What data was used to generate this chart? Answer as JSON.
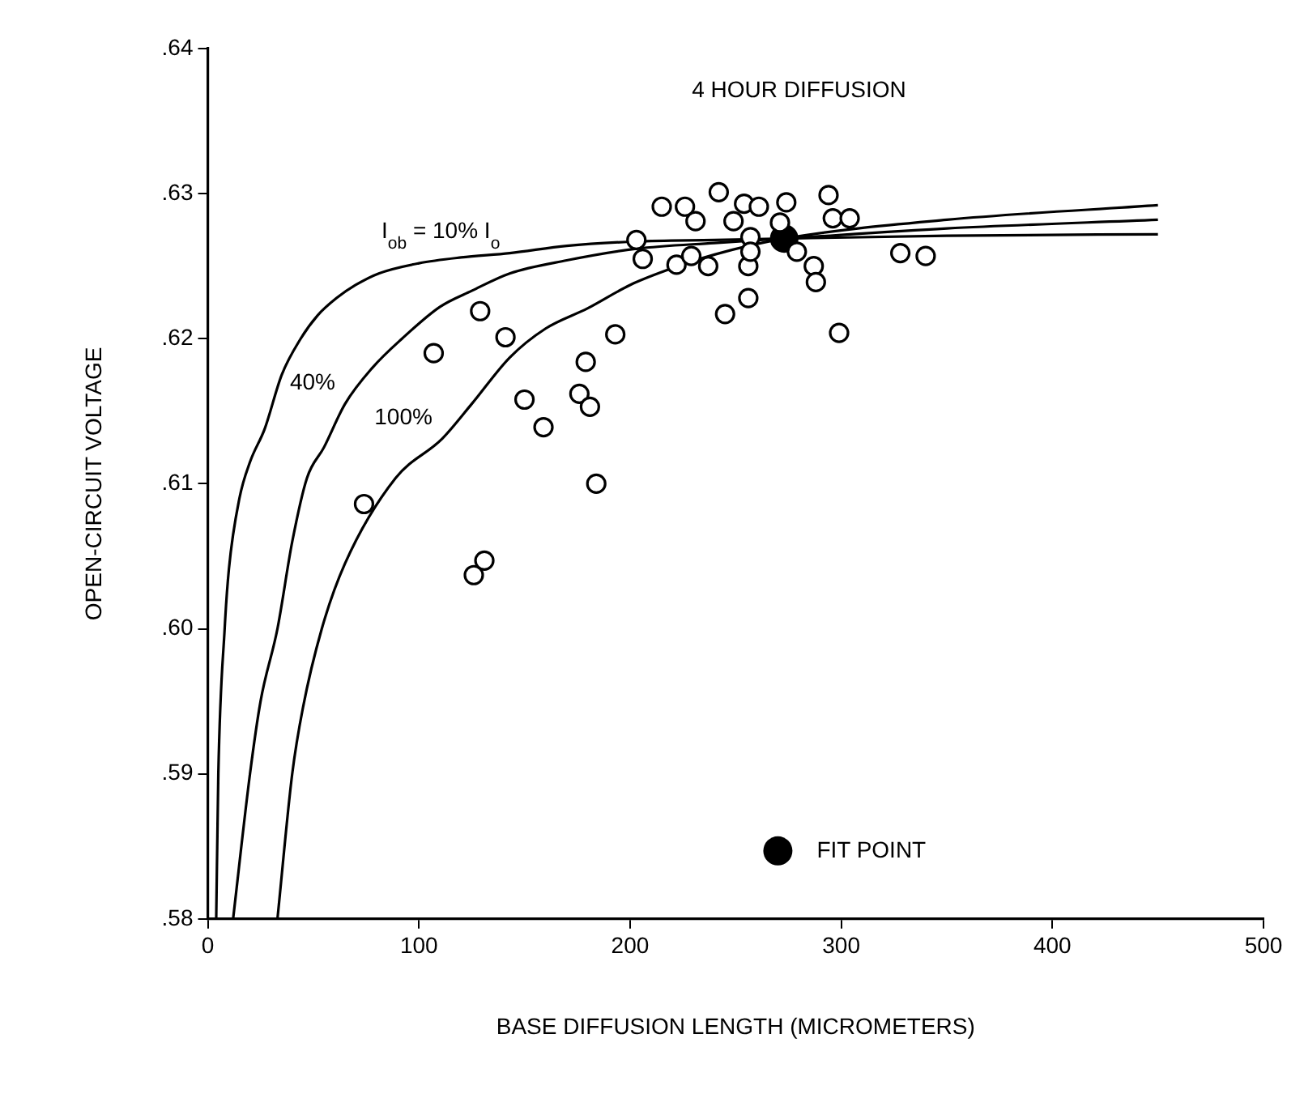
{
  "chart_data": {
    "type": "scatter",
    "xlabel": "BASE DIFFUSION LENGTH (MICROMETERS)",
    "ylabel": "OPEN-CIRCUIT VOLTAGE",
    "xlim": [
      0,
      500
    ],
    "xticks": [
      0,
      100,
      200,
      300,
      400,
      500
    ],
    "ylim": [
      0.58,
      0.64
    ],
    "yticks": [
      {
        "value": 0.58,
        "label": ".58"
      },
      {
        "value": 0.59,
        "label": ".59"
      },
      {
        "value": 0.6,
        "label": ".60"
      },
      {
        "value": 0.61,
        "label": ".61"
      },
      {
        "value": 0.62,
        "label": ".62"
      },
      {
        "value": 0.63,
        "label": ".63"
      },
      {
        "value": 0.64,
        "label": ".64"
      }
    ],
    "grid": false,
    "legend": "bottom",
    "marker": "circle",
    "series": [
      {
        "color": "#000000",
        "x": [
          215,
          226,
          231,
          242,
          249,
          254,
          203,
          206,
          222,
          229,
          237,
          256,
          256,
          245,
          129,
          141,
          107,
          193,
          179,
          176,
          181,
          150,
          159,
          184,
          74,
          126,
          131,
          261,
          274,
          294,
          296,
          304,
          271,
          257,
          257,
          299,
          279,
          287,
          288,
          328,
          340
        ],
        "values": [
          0.6291,
          0.6291,
          0.6281,
          0.6301,
          0.6281,
          0.6293,
          0.6268,
          0.6255,
          0.6251,
          0.6257,
          0.625,
          0.625,
          0.6228,
          0.6217,
          0.6219,
          0.6201,
          0.619,
          0.6203,
          0.6184,
          0.6162,
          0.6153,
          0.6158,
          0.6139,
          0.61,
          0.6086,
          0.6037,
          0.6047,
          0.6291,
          0.6294,
          0.6299,
          0.6283,
          0.6283,
          0.628,
          0.627,
          0.626,
          0.6204,
          0.626,
          0.625,
          0.6239,
          0.6259,
          0.6257
        ]
      },
      {
        "type": "line",
        "marker": "none",
        "color": "#000000",
        "x": [
          4,
          5,
          8,
          10,
          15,
          20,
          27,
          35,
          44,
          52,
          61,
          70,
          81,
          100,
          120,
          143,
          170,
          203,
          240,
          273,
          350,
          450
        ],
        "values": [
          0.58,
          0.59,
          0.6,
          0.6041,
          0.609,
          0.6115,
          0.6138,
          0.6175,
          0.62,
          0.6216,
          0.6228,
          0.6237,
          0.6245,
          0.6252,
          0.6256,
          0.6259,
          0.6264,
          0.6267,
          0.6268,
          0.6269,
          0.6271,
          0.6272
        ]
      },
      {
        "type": "line",
        "marker": "none",
        "color": "#000000",
        "x": [
          12,
          20,
          25,
          33,
          40,
          47,
          55,
          65,
          78,
          92,
          110,
          125,
          143,
          170,
          203,
          240,
          273,
          350,
          450
        ],
        "values": [
          0.58,
          0.59,
          0.595,
          0.6,
          0.606,
          0.6104,
          0.6125,
          0.6155,
          0.618,
          0.62,
          0.6222,
          0.6233,
          0.6245,
          0.6254,
          0.6262,
          0.6266,
          0.6269,
          0.6276,
          0.6282
        ]
      },
      {
        "type": "line",
        "marker": "none",
        "color": "#000000",
        "x": [
          33,
          40,
          45,
          54,
          65,
          89,
          111,
          125,
          143,
          160,
          180,
          200,
          217,
          240,
          273,
          350,
          450
        ],
        "values": [
          0.58,
          0.59,
          0.5945,
          0.6,
          0.6045,
          0.6104,
          0.6131,
          0.6155,
          0.6187,
          0.6207,
          0.6221,
          0.6237,
          0.6247,
          0.6258,
          0.6269,
          0.6282,
          0.6292
        ]
      },
      {
        "name": "FIT POINT",
        "color": "#000000",
        "x": [
          273
        ],
        "values": [
          0.6269
        ]
      }
    ],
    "annotations": [
      "4 HOUR DIFFUSION",
      {
        "text": "I$_{ob}$ = 10% I$_{o}$",
        "x": 143,
        "y": 0.6259
      },
      {
        "text": "40%",
        "x": 65,
        "y": 0.6155
      },
      {
        "text": "100%",
        "x": 111,
        "y": 0.6131
      }
    ]
  }
}
